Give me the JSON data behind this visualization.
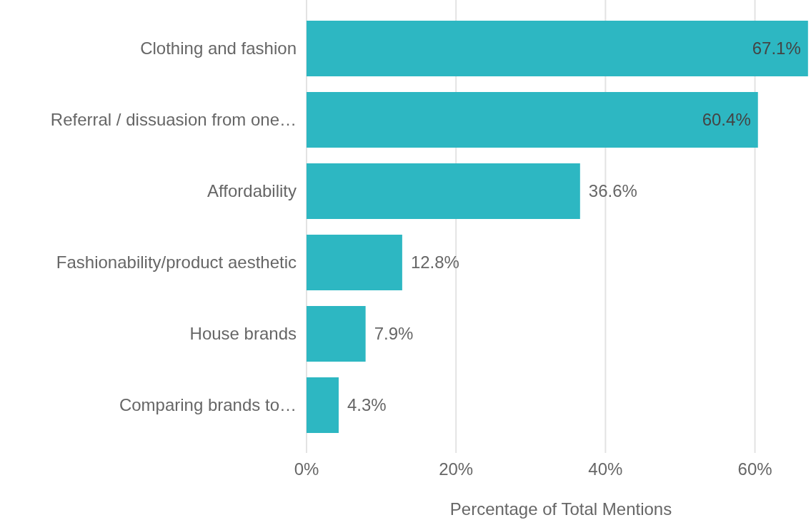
{
  "chart_data": {
    "type": "bar",
    "orientation": "horizontal",
    "xlabel": "Percentage of Total Mentions",
    "categories": [
      "Clothing and fashion",
      "Referral / dissuasion from one…",
      "Affordability",
      "Fashionability/product aesthetic",
      "House brands",
      "Comparing brands to…"
    ],
    "values": [
      67.1,
      60.4,
      36.6,
      12.8,
      7.9,
      4.3
    ],
    "value_labels": [
      "67.1%",
      "60.4%",
      "36.6%",
      "12.8%",
      "7.9%",
      "4.3%"
    ],
    "color": "#2db7c2",
    "xlim": [
      0,
      67.5
    ],
    "xticks": [
      {
        "value": 0,
        "label": "0%"
      },
      {
        "value": 20,
        "label": "20%"
      },
      {
        "value": 40,
        "label": "40%"
      },
      {
        "value": 60,
        "label": "60%"
      }
    ],
    "grid": "x"
  }
}
